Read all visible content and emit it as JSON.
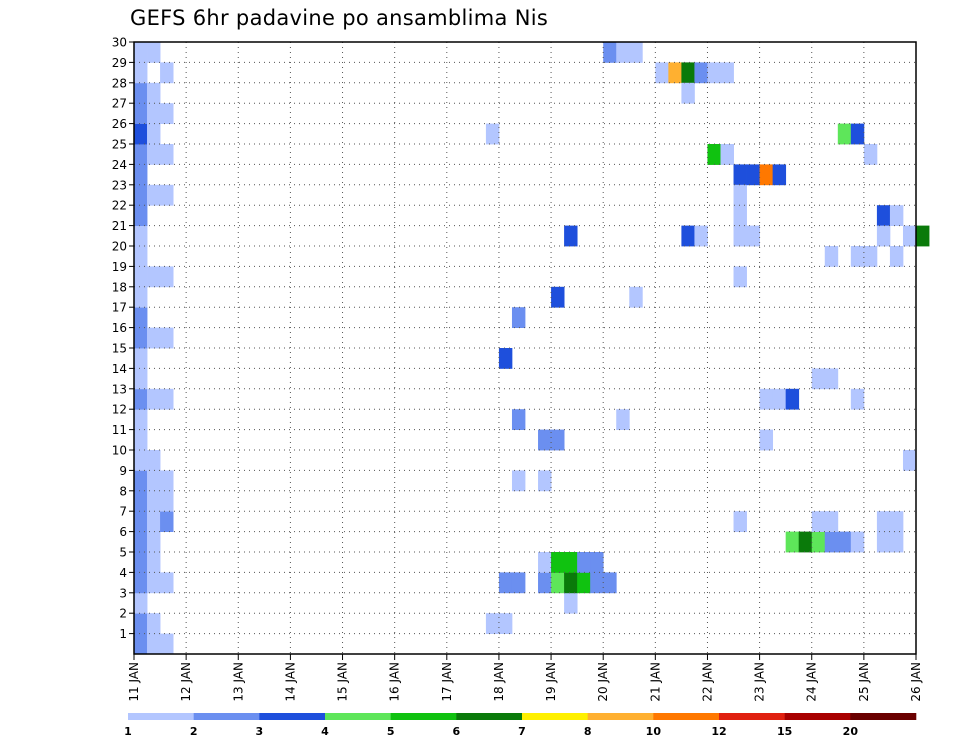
{
  "chart_data": {
    "type": "heatmap",
    "title": "GEFS 6hr padavine po ansamblima Nis",
    "xlabel": "",
    "ylabel": "",
    "x_tick_labels": [
      "11 JAN",
      "12 JAN",
      "13 JAN",
      "14 JAN",
      "15 JAN",
      "16 JAN",
      "17 JAN",
      "18 JAN",
      "19 JAN",
      "20 JAN",
      "21 JAN",
      "22 JAN",
      "23 JAN",
      "24 JAN",
      "25 JAN",
      "26 JAN"
    ],
    "x_steps": 60,
    "y_tick_labels": [
      "1",
      "2",
      "3",
      "4",
      "5",
      "6",
      "7",
      "8",
      "9",
      "10",
      "11",
      "12",
      "13",
      "14",
      "15",
      "16",
      "17",
      "18",
      "19",
      "20",
      "21",
      "22",
      "23",
      "24",
      "25",
      "26",
      "27",
      "28",
      "29",
      "30"
    ],
    "grid": "dotted",
    "colorbar": {
      "labels": [
        "1",
        "2",
        "3",
        "4",
        "5",
        "6",
        "7",
        "8",
        "10",
        "12",
        "15",
        "20"
      ],
      "colors": [
        "#b3c6ff",
        "#6b8ff0",
        "#1e4fdc",
        "#5ee65a",
        "#10c210",
        "#0a7a0a",
        "#fff000",
        "#ffb030",
        "#ff7800",
        "#e02010",
        "#a80000",
        "#6a0000"
      ]
    },
    "cells": [
      [
        0,
        0,
        2
      ],
      [
        0,
        1,
        2
      ],
      [
        0,
        2,
        1
      ],
      [
        0,
        3,
        2
      ],
      [
        0,
        4,
        2
      ],
      [
        0,
        5,
        2
      ],
      [
        0,
        6,
        2
      ],
      [
        0,
        7,
        2
      ],
      [
        0,
        8,
        2
      ],
      [
        0,
        9,
        1
      ],
      [
        0,
        10,
        1
      ],
      [
        0,
        11,
        1
      ],
      [
        0,
        12,
        2
      ],
      [
        0,
        13,
        1
      ],
      [
        0,
        14,
        1
      ],
      [
        0,
        15,
        2
      ],
      [
        0,
        16,
        2
      ],
      [
        0,
        17,
        1
      ],
      [
        0,
        18,
        1
      ],
      [
        0,
        19,
        1
      ],
      [
        0,
        20,
        1
      ],
      [
        0,
        21,
        2
      ],
      [
        0,
        22,
        2
      ],
      [
        0,
        23,
        2
      ],
      [
        0,
        24,
        2
      ],
      [
        0,
        25,
        3
      ],
      [
        0,
        26,
        2
      ],
      [
        0,
        27,
        2
      ],
      [
        0,
        28,
        1
      ],
      [
        0,
        29,
        1
      ],
      [
        1,
        0,
        1
      ],
      [
        1,
        1,
        1
      ],
      [
        1,
        3,
        1
      ],
      [
        1,
        4,
        1
      ],
      [
        1,
        5,
        1
      ],
      [
        1,
        6,
        1
      ],
      [
        1,
        7,
        1
      ],
      [
        1,
        8,
        1
      ],
      [
        1,
        9,
        1
      ],
      [
        1,
        12,
        1
      ],
      [
        1,
        15,
        1
      ],
      [
        1,
        18,
        1
      ],
      [
        1,
        22,
        1
      ],
      [
        1,
        24,
        1
      ],
      [
        1,
        25,
        1
      ],
      [
        1,
        26,
        1
      ],
      [
        1,
        27,
        1
      ],
      [
        1,
        29,
        1
      ],
      [
        2,
        0,
        1
      ],
      [
        2,
        3,
        1
      ],
      [
        2,
        6,
        2
      ],
      [
        2,
        7,
        1
      ],
      [
        2,
        8,
        1
      ],
      [
        2,
        12,
        1
      ],
      [
        2,
        15,
        1
      ],
      [
        2,
        18,
        1
      ],
      [
        2,
        22,
        1
      ],
      [
        2,
        24,
        1
      ],
      [
        2,
        26,
        1
      ],
      [
        2,
        28,
        1
      ],
      [
        27,
        1,
        1
      ],
      [
        27,
        25,
        1
      ],
      [
        28,
        1,
        1
      ],
      [
        28,
        3,
        2
      ],
      [
        28,
        14,
        3
      ],
      [
        29,
        3,
        2
      ],
      [
        29,
        8,
        1
      ],
      [
        29,
        11,
        2
      ],
      [
        29,
        16,
        2
      ],
      [
        31,
        3,
        2
      ],
      [
        31,
        4,
        1
      ],
      [
        31,
        8,
        1
      ],
      [
        31,
        10,
        2
      ],
      [
        32,
        3,
        4
      ],
      [
        32,
        4,
        5
      ],
      [
        32,
        10,
        2
      ],
      [
        32,
        17,
        3
      ],
      [
        33,
        2,
        1
      ],
      [
        33,
        3,
        6
      ],
      [
        33,
        4,
        5
      ],
      [
        33,
        20,
        3
      ],
      [
        34,
        3,
        5
      ],
      [
        34,
        4,
        2
      ],
      [
        35,
        3,
        2
      ],
      [
        35,
        4,
        2
      ],
      [
        36,
        3,
        2
      ],
      [
        36,
        29,
        2
      ],
      [
        37,
        11,
        1
      ],
      [
        37,
        29,
        1
      ],
      [
        38,
        17,
        1
      ],
      [
        38,
        29,
        1
      ],
      [
        40,
        28,
        1
      ],
      [
        41,
        28,
        8
      ],
      [
        42,
        20,
        3
      ],
      [
        42,
        28,
        6
      ],
      [
        42,
        27,
        1
      ],
      [
        43,
        20,
        1
      ],
      [
        43,
        28,
        2
      ],
      [
        44,
        24,
        5
      ],
      [
        44,
        28,
        1
      ],
      [
        45,
        24,
        1
      ],
      [
        45,
        28,
        1
      ],
      [
        46,
        18,
        1
      ],
      [
        46,
        20,
        1
      ],
      [
        47,
        20,
        1
      ],
      [
        44,
        24,
        5
      ],
      [
        45,
        24,
        1
      ],
      [
        46,
        23,
        3
      ],
      [
        46,
        22,
        1
      ],
      [
        46,
        21,
        1
      ],
      [
        46,
        6,
        1
      ],
      [
        47,
        23,
        3
      ],
      [
        48,
        23,
        9
      ],
      [
        49,
        23,
        3
      ],
      [
        48,
        12,
        1
      ],
      [
        48,
        10,
        1
      ],
      [
        49,
        12,
        1
      ],
      [
        50,
        5,
        4
      ],
      [
        50,
        12,
        3
      ],
      [
        51,
        5,
        6
      ],
      [
        52,
        5,
        4
      ],
      [
        52,
        6,
        1
      ],
      [
        52,
        13,
        1
      ],
      [
        53,
        5,
        2
      ],
      [
        53,
        6,
        1
      ],
      [
        53,
        13,
        1
      ],
      [
        53,
        19,
        1
      ],
      [
        54,
        5,
        2
      ],
      [
        54,
        25,
        4
      ],
      [
        55,
        5,
        1
      ],
      [
        55,
        12,
        1
      ],
      [
        55,
        25,
        3
      ],
      [
        55,
        19,
        1
      ],
      [
        56,
        24,
        1
      ],
      [
        56,
        19,
        1
      ],
      [
        57,
        21,
        3
      ],
      [
        57,
        20,
        1
      ],
      [
        57,
        6,
        1
      ],
      [
        57,
        5,
        1
      ],
      [
        58,
        21,
        1
      ],
      [
        58,
        19,
        1
      ],
      [
        58,
        6,
        1
      ],
      [
        58,
        5,
        1
      ],
      [
        59,
        20,
        1
      ],
      [
        59,
        9,
        1
      ],
      [
        60,
        20,
        6
      ]
    ]
  }
}
